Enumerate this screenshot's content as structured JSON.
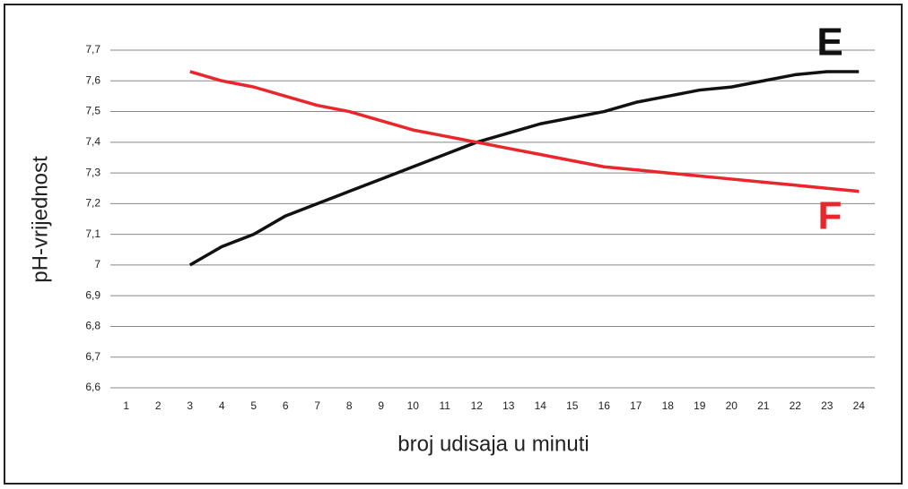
{
  "chart_data": {
    "type": "line",
    "xlabel": "broj udisaja u minuti",
    "ylabel": "pH-vrijednost",
    "categories": [
      "1",
      "2",
      "3",
      "4",
      "5",
      "6",
      "7",
      "8",
      "9",
      "10",
      "11",
      "12",
      "13",
      "14",
      "15",
      "16",
      "17",
      "18",
      "19",
      "20",
      "21",
      "22",
      "23",
      "24"
    ],
    "series": [
      {
        "name": "E",
        "color": "#111111",
        "values": [
          null,
          null,
          7.0,
          7.06,
          7.1,
          7.16,
          7.2,
          7.24,
          7.28,
          7.32,
          7.36,
          7.4,
          7.43,
          7.46,
          7.48,
          7.5,
          7.53,
          7.55,
          7.57,
          7.58,
          7.6,
          7.62,
          7.63,
          7.63
        ]
      },
      {
        "name": "F",
        "color": "#e8262b",
        "values": [
          null,
          null,
          7.63,
          7.6,
          7.58,
          7.55,
          7.52,
          7.5,
          7.47,
          7.44,
          7.42,
          7.4,
          7.38,
          7.36,
          7.34,
          7.32,
          7.31,
          7.3,
          7.29,
          7.28,
          7.27,
          7.26,
          7.25,
          7.24
        ]
      }
    ],
    "ylim": [
      6.6,
      7.7
    ],
    "yticks": [
      {
        "value": 6.6,
        "label": "6,6"
      },
      {
        "value": 6.7,
        "label": "6,7"
      },
      {
        "value": 6.8,
        "label": "6,8"
      },
      {
        "value": 6.9,
        "label": "6,9"
      },
      7,
      {
        "value": 7.1,
        "label": "7,1"
      },
      {
        "value": 7.2,
        "label": "7,2"
      },
      {
        "value": 7.3,
        "label": "7,3"
      },
      {
        "value": 7.4,
        "label": "7,4"
      },
      {
        "value": 7.5,
        "label": "7,5"
      },
      {
        "value": 7.6,
        "label": "7,6"
      },
      {
        "value": 7.7,
        "label": "7,7"
      }
    ],
    "grid": true
  }
}
